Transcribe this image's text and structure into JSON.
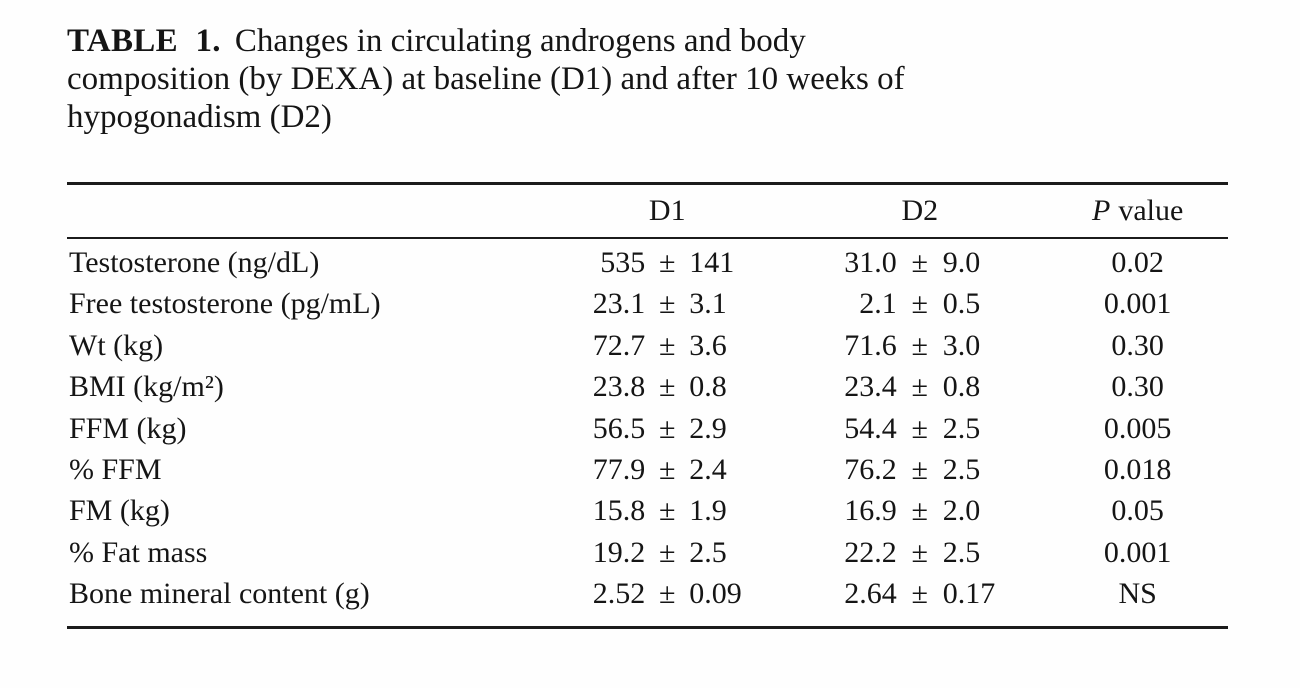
{
  "caption": {
    "label": "TABLE 1.",
    "line1": "Changes in circulating androgens and body",
    "line2": "composition (by DEXA) at baseline (D1) and after 10 weeks of",
    "line3": "hypogonadism (D2)"
  },
  "table": {
    "pm": "±",
    "header": {
      "d1": "D1",
      "d2": "D2",
      "p_italic": "P",
      "p_rest": "value"
    },
    "rows": [
      {
        "label": "Testosterone (ng/dL)",
        "d1m": "535",
        "d1s": "141",
        "d2m": "31.0",
        "d2s": "9.0",
        "p": "0.02"
      },
      {
        "label": "Free testosterone (pg/mL)",
        "d1m": "23.1",
        "d1s": "3.1",
        "d2m": "2.1",
        "d2s": "0.5",
        "p": "0.001"
      },
      {
        "label": "Wt (kg)",
        "d1m": "72.7",
        "d1s": "3.6",
        "d2m": "71.6",
        "d2s": "3.0",
        "p": "0.30"
      },
      {
        "label": "BMI (kg/m²)",
        "d1m": "23.8",
        "d1s": "0.8",
        "d2m": "23.4",
        "d2s": "0.8",
        "p": "0.30"
      },
      {
        "label": "FFM (kg)",
        "d1m": "56.5",
        "d1s": "2.9",
        "d2m": "54.4",
        "d2s": "2.5",
        "p": "0.005"
      },
      {
        "label": "% FFM",
        "d1m": "77.9",
        "d1s": "2.4",
        "d2m": "76.2",
        "d2s": "2.5",
        "p": "0.018"
      },
      {
        "label": "FM (kg)",
        "d1m": "15.8",
        "d1s": "1.9",
        "d2m": "16.9",
        "d2s": "2.0",
        "p": "0.05"
      },
      {
        "label": "% Fat mass",
        "d1m": "19.2",
        "d1s": "2.5",
        "d2m": "22.2",
        "d2s": "2.5",
        "p": "0.001"
      },
      {
        "label": "Bone mineral content (g)",
        "d1m": "2.52",
        "d1s": "0.09",
        "d2m": "2.64",
        "d2s": "0.17",
        "p": "NS"
      }
    ]
  }
}
